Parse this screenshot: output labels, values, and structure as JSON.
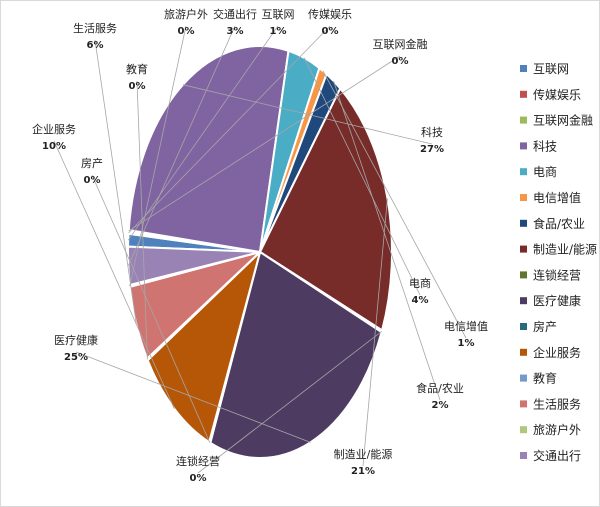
{
  "chart_data": {
    "type": "pie",
    "title": "",
    "slices": [
      {
        "label": "互联网",
        "pct": "1%",
        "value": 1,
        "color": "#4f81bd"
      },
      {
        "label": "传媒娱乐",
        "pct": "0%",
        "value": 0,
        "color": "#c0504d"
      },
      {
        "label": "互联网金融",
        "pct": "0%",
        "value": 0,
        "color": "#9bbb59"
      },
      {
        "label": "科技",
        "pct": "27%",
        "value": 27,
        "color": "#8064a2"
      },
      {
        "label": "电商",
        "pct": "4%",
        "value": 4,
        "color": "#4bacc6"
      },
      {
        "label": "电信增值",
        "pct": "1%",
        "value": 1,
        "color": "#f79646"
      },
      {
        "label": "食品/农业",
        "pct": "2%",
        "value": 2,
        "color": "#1f497d"
      },
      {
        "label": "制造业/能源",
        "pct": "21%",
        "value": 21,
        "color": "#772c2a"
      },
      {
        "label": "连锁经营",
        "pct": "0%",
        "value": 0,
        "color": "#5f7530"
      },
      {
        "label": "医疗健康",
        "pct": "25%",
        "value": 25,
        "color": "#4d3b62"
      },
      {
        "label": "房产",
        "pct": "0%",
        "value": 0,
        "color": "#276a7c"
      },
      {
        "label": "企业服务",
        "pct": "10%",
        "value": 10,
        "color": "#b65708"
      },
      {
        "label": "教育",
        "pct": "0%",
        "value": 0,
        "color": "#729aca"
      },
      {
        "label": "生活服务",
        "pct": "6%",
        "value": 6,
        "color": "#d07472"
      },
      {
        "label": "旅游户外",
        "pct": "0%",
        "value": 0,
        "color": "#afc97a"
      },
      {
        "label": "交通出行",
        "pct": "3%",
        "value": 3,
        "color": "#9983b5"
      }
    ],
    "legend_position": "right"
  }
}
